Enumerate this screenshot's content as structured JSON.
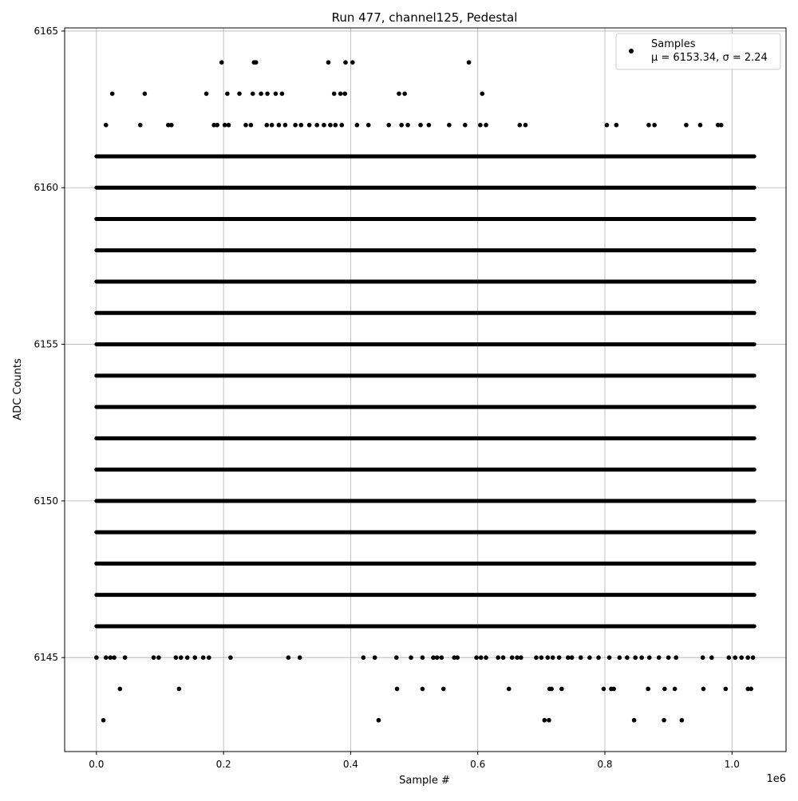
{
  "chart_data": {
    "type": "scatter",
    "title": "Run 477, channel125, Pedestal",
    "xlabel": "Sample #",
    "ylabel": "ADC Counts",
    "x_offset_label": "1e6",
    "x_scale": 1000000,
    "xlim": [
      -50000,
      1085000
    ],
    "ylim": [
      6142,
      6165.1
    ],
    "x_ticks": [
      0,
      200000,
      400000,
      600000,
      800000,
      1000000
    ],
    "x_tick_labels": [
      "0.0",
      "0.2",
      "0.4",
      "0.6",
      "0.8",
      "1.0"
    ],
    "y_ticks": [
      6145,
      6150,
      6155,
      6160,
      6165
    ],
    "y_tick_labels": [
      "6145",
      "6150",
      "6155",
      "6160",
      "6165"
    ],
    "grid": true,
    "legend": {
      "position": "top-right",
      "entries": [
        {
          "name": "Samples",
          "stats": "μ = 6153.34, σ = 2.24",
          "color": "#000000",
          "marker": "circle"
        }
      ]
    },
    "series": [
      {
        "name": "Samples",
        "color": "#000000",
        "x_range": [
          0,
          1035000
        ],
        "dense_rows": [
          6146,
          6147,
          6148,
          6149,
          6150,
          6151,
          6152,
          6153,
          6154,
          6155,
          6156,
          6157,
          6158,
          6159,
          6160,
          6161
        ],
        "points": [
          [
            0,
            6145
          ],
          [
            15000,
            6145
          ],
          [
            22000,
            6145
          ],
          [
            28000,
            6145
          ],
          [
            45000,
            6145
          ],
          [
            90000,
            6145
          ],
          [
            98000,
            6145
          ],
          [
            125000,
            6145
          ],
          [
            133000,
            6145
          ],
          [
            143000,
            6145
          ],
          [
            155000,
            6145
          ],
          [
            168000,
            6145
          ],
          [
            177000,
            6145
          ],
          [
            211000,
            6145
          ],
          [
            302000,
            6145
          ],
          [
            320000,
            6145
          ],
          [
            420000,
            6145
          ],
          [
            438000,
            6145
          ],
          [
            472000,
            6145
          ],
          [
            495000,
            6145
          ],
          [
            513000,
            6145
          ],
          [
            530000,
            6145
          ],
          [
            536000,
            6145
          ],
          [
            543000,
            6145
          ],
          [
            563000,
            6145
          ],
          [
            568000,
            6145
          ],
          [
            598000,
            6145
          ],
          [
            605000,
            6145
          ],
          [
            613000,
            6145
          ],
          [
            632000,
            6145
          ],
          [
            640000,
            6145
          ],
          [
            654000,
            6145
          ],
          [
            662000,
            6145
          ],
          [
            668000,
            6145
          ],
          [
            692000,
            6145
          ],
          [
            700000,
            6145
          ],
          [
            710000,
            6145
          ],
          [
            718000,
            6145
          ],
          [
            728000,
            6145
          ],
          [
            742000,
            6145
          ],
          [
            748000,
            6145
          ],
          [
            762000,
            6145
          ],
          [
            776000,
            6145
          ],
          [
            790000,
            6145
          ],
          [
            807000,
            6145
          ],
          [
            823000,
            6145
          ],
          [
            835000,
            6145
          ],
          [
            848000,
            6145
          ],
          [
            858000,
            6145
          ],
          [
            870000,
            6145
          ],
          [
            885000,
            6145
          ],
          [
            900000,
            6145
          ],
          [
            912000,
            6145
          ],
          [
            954000,
            6145
          ],
          [
            968000,
            6145
          ],
          [
            995000,
            6145
          ],
          [
            1005000,
            6145
          ],
          [
            1015000,
            6145
          ],
          [
            1025000,
            6145
          ],
          [
            1033000,
            6145
          ],
          [
            37000,
            6144
          ],
          [
            130000,
            6144
          ],
          [
            473000,
            6144
          ],
          [
            513000,
            6144
          ],
          [
            546000,
            6144
          ],
          [
            649000,
            6144
          ],
          [
            713000,
            6144
          ],
          [
            716000,
            6144
          ],
          [
            732000,
            6144
          ],
          [
            798000,
            6144
          ],
          [
            810000,
            6144
          ],
          [
            814000,
            6144
          ],
          [
            868000,
            6144
          ],
          [
            894000,
            6144
          ],
          [
            910000,
            6144
          ],
          [
            955000,
            6144
          ],
          [
            990000,
            6144
          ],
          [
            1025000,
            6144
          ],
          [
            1030000,
            6144
          ],
          [
            11000,
            6143
          ],
          [
            444000,
            6143
          ],
          [
            705000,
            6143
          ],
          [
            712000,
            6143
          ],
          [
            846000,
            6143
          ],
          [
            893000,
            6143
          ],
          [
            921000,
            6143
          ],
          [
            15000,
            6162
          ],
          [
            69000,
            6162
          ],
          [
            113000,
            6162
          ],
          [
            118000,
            6162
          ],
          [
            185000,
            6162
          ],
          [
            190000,
            6162
          ],
          [
            202000,
            6162
          ],
          [
            208000,
            6162
          ],
          [
            235000,
            6162
          ],
          [
            243000,
            6162
          ],
          [
            268000,
            6162
          ],
          [
            276000,
            6162
          ],
          [
            287000,
            6162
          ],
          [
            297000,
            6162
          ],
          [
            313000,
            6162
          ],
          [
            322000,
            6162
          ],
          [
            335000,
            6162
          ],
          [
            347000,
            6162
          ],
          [
            358000,
            6162
          ],
          [
            368000,
            6162
          ],
          [
            376000,
            6162
          ],
          [
            386000,
            6162
          ],
          [
            410000,
            6162
          ],
          [
            428000,
            6162
          ],
          [
            460000,
            6162
          ],
          [
            480000,
            6162
          ],
          [
            490000,
            6162
          ],
          [
            510000,
            6162
          ],
          [
            523000,
            6162
          ],
          [
            555000,
            6162
          ],
          [
            580000,
            6162
          ],
          [
            604000,
            6162
          ],
          [
            613000,
            6162
          ],
          [
            666000,
            6162
          ],
          [
            675000,
            6162
          ],
          [
            803000,
            6162
          ],
          [
            818000,
            6162
          ],
          [
            869000,
            6162
          ],
          [
            878000,
            6162
          ],
          [
            928000,
            6162
          ],
          [
            950000,
            6162
          ],
          [
            978000,
            6162
          ],
          [
            983000,
            6162
          ],
          [
            25000,
            6163
          ],
          [
            76000,
            6163
          ],
          [
            173000,
            6163
          ],
          [
            206000,
            6163
          ],
          [
            225000,
            6163
          ],
          [
            246000,
            6163
          ],
          [
            259000,
            6163
          ],
          [
            269000,
            6163
          ],
          [
            282000,
            6163
          ],
          [
            292000,
            6163
          ],
          [
            374000,
            6163
          ],
          [
            384000,
            6163
          ],
          [
            391000,
            6163
          ],
          [
            476000,
            6163
          ],
          [
            485000,
            6163
          ],
          [
            607000,
            6163
          ],
          [
            197000,
            6164
          ],
          [
            248000,
            6164
          ],
          [
            251000,
            6164
          ],
          [
            365000,
            6164
          ],
          [
            392000,
            6164
          ],
          [
            403000,
            6164
          ],
          [
            586000,
            6164
          ]
        ]
      }
    ]
  }
}
